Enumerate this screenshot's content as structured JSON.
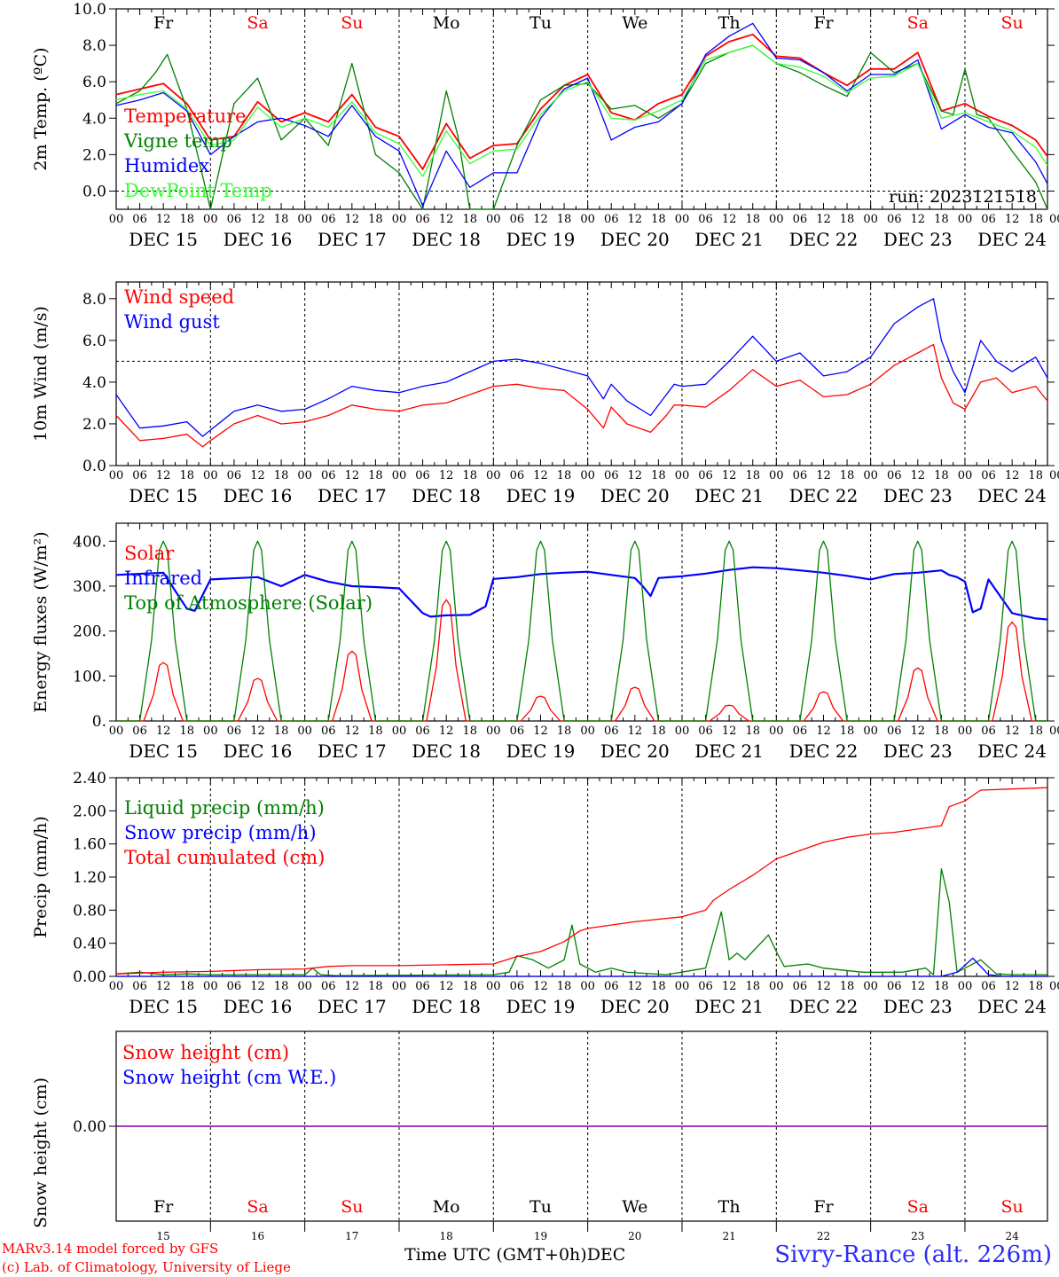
{
  "chart_data": [
    {
      "type": "line",
      "ylabel": "2m Temp. (ºC)",
      "ylim": [
        -1,
        10
      ],
      "yticks": [
        0,
        2,
        4,
        6,
        8,
        10
      ],
      "ytick_labels": [
        "0.0",
        "2.0",
        "4.0",
        "6.0",
        "8.0",
        "10.0"
      ],
      "reference_line": 0,
      "annotation": "run: 2023121518",
      "x_unit": "hours from 2023-12-15 00 UTC",
      "series": [
        {
          "name": "Temperature",
          "color": "#ff0000",
          "x": [
            0,
            6,
            12,
            18,
            24,
            30,
            36,
            42,
            48,
            54,
            60,
            66,
            72,
            78,
            84,
            90,
            96,
            102,
            108,
            114,
            120,
            126,
            132,
            138,
            144,
            150,
            156,
            162,
            168,
            174,
            180,
            186,
            192,
            198,
            204,
            210,
            216,
            222,
            228,
            234,
            237
          ],
          "y": [
            5.3,
            5.6,
            5.9,
            4.8,
            2.8,
            3.0,
            4.9,
            3.8,
            4.3,
            3.8,
            5.3,
            3.5,
            3.0,
            1.2,
            3.7,
            1.8,
            2.5,
            2.6,
            4.5,
            5.8,
            6.4,
            4.3,
            3.9,
            4.8,
            5.3,
            7.4,
            8.2,
            8.6,
            7.4,
            7.3,
            6.5,
            5.8,
            6.7,
            6.7,
            7.6,
            4.4,
            4.8,
            4.1,
            3.6,
            2.8,
            1.9
          ]
        },
        {
          "name": "Vigne temp",
          "color": "#008000",
          "x": [
            0,
            6,
            10,
            13,
            18,
            24,
            30,
            36,
            42,
            48,
            54,
            60,
            66,
            72,
            78,
            84,
            87,
            90,
            96,
            102,
            108,
            114,
            120,
            126,
            132,
            138,
            144,
            150,
            156,
            162,
            168,
            174,
            180,
            186,
            192,
            198,
            204,
            210,
            213,
            216,
            219,
            222,
            228,
            234,
            237
          ],
          "y": [
            4.8,
            5.5,
            6.5,
            7.5,
            4.5,
            -1.0,
            4.8,
            6.2,
            2.8,
            4.0,
            2.5,
            7.0,
            2.0,
            1.0,
            -1.2,
            5.5,
            3.0,
            -1.0,
            -1.0,
            2.5,
            5.0,
            5.8,
            5.9,
            4.5,
            4.7,
            4.0,
            4.8,
            7.0,
            7.6,
            8.0,
            7.0,
            6.5,
            5.8,
            5.2,
            7.6,
            6.5,
            7.0,
            4.4,
            4.2,
            6.7,
            4.2,
            4.0,
            2.2,
            0.5,
            -1.0
          ]
        },
        {
          "name": "Humidex",
          "color": "#0000ff",
          "x": [
            0,
            6,
            12,
            18,
            24,
            30,
            36,
            42,
            48,
            54,
            60,
            66,
            72,
            78,
            84,
            90,
            96,
            102,
            108,
            114,
            120,
            126,
            132,
            138,
            144,
            150,
            156,
            162,
            168,
            174,
            180,
            186,
            192,
            198,
            204,
            210,
            216,
            222,
            228,
            234,
            237
          ],
          "y": [
            4.7,
            5.0,
            5.4,
            4.4,
            2.0,
            3.0,
            3.8,
            4.0,
            3.6,
            3.0,
            4.7,
            3.0,
            2.2,
            -0.8,
            2.2,
            0.2,
            1.0,
            1.0,
            4.0,
            5.6,
            6.2,
            2.8,
            3.5,
            3.8,
            4.8,
            7.5,
            8.5,
            9.2,
            7.3,
            7.2,
            6.5,
            5.5,
            6.4,
            6.4,
            7.2,
            3.4,
            4.2,
            3.5,
            3.2,
            1.6,
            0.4
          ]
        },
        {
          "name": "DewPoint Temp",
          "color": "#33ff33",
          "x": [
            0,
            6,
            12,
            18,
            24,
            30,
            36,
            42,
            48,
            54,
            60,
            66,
            72,
            78,
            84,
            90,
            96,
            102,
            108,
            114,
            120,
            126,
            132,
            138,
            144,
            150,
            156,
            162,
            168,
            174,
            180,
            186,
            192,
            198,
            204,
            210,
            216,
            222,
            228,
            234,
            237
          ],
          "y": [
            5.0,
            5.3,
            5.5,
            4.5,
            2.5,
            2.8,
            4.6,
            3.5,
            4.0,
            3.5,
            4.9,
            3.2,
            2.6,
            0.8,
            3.3,
            1.5,
            2.2,
            2.3,
            4.2,
            5.5,
            6.0,
            4.0,
            3.9,
            4.4,
            5.0,
            7.2,
            7.6,
            8.0,
            7.0,
            6.8,
            6.3,
            5.4,
            6.2,
            6.3,
            7.0,
            4.0,
            4.3,
            3.8,
            3.3,
            2.4,
            1.4
          ]
        }
      ]
    },
    {
      "type": "line",
      "ylabel": "10m Wind (m/s)",
      "ylim": [
        0,
        8.8
      ],
      "yticks": [
        0,
        2,
        4,
        6,
        8
      ],
      "ytick_labels": [
        "0.0",
        "2.0",
        "4.0",
        "6.0",
        "8.0"
      ],
      "reference_line": 5,
      "series": [
        {
          "name": "Wind speed",
          "color": "#ff0000",
          "x": [
            0,
            6,
            12,
            18,
            22,
            24,
            30,
            36,
            42,
            48,
            54,
            60,
            66,
            72,
            78,
            84,
            90,
            96,
            102,
            108,
            114,
            120,
            124,
            126,
            130,
            136,
            140,
            142,
            144,
            150,
            156,
            162,
            168,
            174,
            180,
            186,
            192,
            198,
            204,
            208,
            210,
            213,
            216,
            220,
            224,
            228,
            234,
            237
          ],
          "y": [
            2.4,
            1.2,
            1.3,
            1.5,
            0.9,
            1.2,
            2.0,
            2.4,
            2.0,
            2.1,
            2.4,
            2.9,
            2.7,
            2.6,
            2.9,
            3.0,
            3.4,
            3.8,
            3.9,
            3.7,
            3.6,
            2.7,
            1.8,
            2.8,
            2.0,
            1.6,
            2.4,
            2.9,
            2.9,
            2.8,
            3.6,
            4.6,
            3.8,
            4.1,
            3.3,
            3.4,
            3.9,
            4.8,
            5.4,
            5.8,
            4.2,
            3.0,
            2.7,
            4.0,
            4.2,
            3.5,
            3.8,
            3.1
          ]
        },
        {
          "name": "Wind gust",
          "color": "#0000ff",
          "x": [
            0,
            6,
            12,
            18,
            22,
            24,
            30,
            36,
            42,
            48,
            54,
            60,
            66,
            72,
            78,
            84,
            90,
            96,
            102,
            108,
            114,
            120,
            124,
            126,
            130,
            136,
            140,
            142,
            144,
            150,
            156,
            162,
            168,
            174,
            180,
            186,
            192,
            198,
            204,
            208,
            210,
            213,
            216,
            220,
            224,
            228,
            234,
            237
          ],
          "y": [
            3.4,
            1.8,
            1.9,
            2.1,
            1.4,
            1.7,
            2.6,
            2.9,
            2.6,
            2.7,
            3.2,
            3.8,
            3.6,
            3.5,
            3.8,
            4.0,
            4.5,
            5.0,
            5.1,
            4.9,
            4.6,
            4.3,
            3.2,
            3.9,
            3.1,
            2.4,
            3.4,
            3.9,
            3.8,
            3.9,
            5.0,
            6.2,
            5.0,
            5.4,
            4.3,
            4.5,
            5.2,
            6.8,
            7.6,
            8.0,
            6.0,
            4.5,
            3.5,
            6.0,
            5.0,
            4.5,
            5.2,
            4.2
          ]
        }
      ]
    },
    {
      "type": "line",
      "ylabel": "Energy fluxes (W/m²)",
      "ylim": [
        0,
        440
      ],
      "yticks": [
        0,
        100,
        200,
        300,
        400
      ],
      "ytick_labels": [
        "0.",
        "100.",
        "200.",
        "300.",
        "400."
      ],
      "series": [
        {
          "name": "Solar",
          "color": "#ff0000",
          "peaks_hour": [
            12,
            36,
            60,
            84,
            108,
            132,
            156,
            180,
            204,
            228
          ],
          "peaks_value": [
            130,
            95,
            155,
            270,
            55,
            75,
            35,
            65,
            118,
            220
          ]
        },
        {
          "name": "Infrared",
          "color": "#0000ff",
          "x": [
            0,
            12,
            18,
            20,
            24,
            36,
            42,
            48,
            54,
            60,
            66,
            72,
            78,
            80,
            84,
            90,
            94,
            96,
            102,
            108,
            114,
            120,
            126,
            132,
            134,
            136,
            138,
            144,
            150,
            156,
            162,
            168,
            174,
            180,
            186,
            192,
            198,
            204,
            210,
            212,
            214,
            216,
            218,
            220,
            222,
            228,
            234,
            237
          ],
          "y": [
            325,
            330,
            250,
            245,
            315,
            320,
            300,
            325,
            310,
            300,
            298,
            295,
            240,
            232,
            235,
            236,
            255,
            316,
            320,
            327,
            330,
            332,
            325,
            318,
            300,
            278,
            318,
            322,
            328,
            336,
            342,
            340,
            335,
            330,
            323,
            315,
            327,
            330,
            335,
            325,
            320,
            310,
            242,
            250,
            315,
            240,
            228,
            226
          ]
        },
        {
          "name": "Top of Atmosphere (Solar)",
          "color": "#008000",
          "peaks_hour": [
            12,
            36,
            60,
            84,
            108,
            132,
            156,
            180,
            204,
            228
          ],
          "peaks_value": [
            400,
            400,
            400,
            400,
            400,
            400,
            400,
            400,
            400,
            400
          ]
        }
      ]
    },
    {
      "type": "line",
      "ylabel": "Precip (mm/h)",
      "ylim": [
        0,
        2.4
      ],
      "yticks": [
        0,
        0.4,
        0.8,
        1.2,
        1.6,
        2.0,
        2.4
      ],
      "ytick_labels": [
        "0.00",
        "0.40",
        "0.80",
        "1.20",
        "1.60",
        "2.00",
        "2.40"
      ],
      "series": [
        {
          "name": "Liquid precip (mm/h)",
          "color": "#008000",
          "x": [
            0,
            6,
            12,
            18,
            24,
            48,
            50,
            52,
            56,
            96,
            100,
            102,
            106,
            110,
            114,
            116,
            118,
            122,
            126,
            130,
            140,
            150,
            154,
            156,
            158,
            160,
            162,
            166,
            168,
            170,
            176,
            180,
            190,
            200,
            206,
            208,
            210,
            212,
            214,
            216,
            220,
            224,
            228,
            237
          ],
          "y": [
            0.03,
            0.05,
            0.02,
            0.03,
            0.02,
            0.02,
            0.1,
            0.02,
            0.01,
            0.02,
            0.05,
            0.25,
            0.2,
            0.1,
            0.2,
            0.62,
            0.15,
            0.05,
            0.1,
            0.05,
            0.02,
            0.1,
            0.78,
            0.2,
            0.28,
            0.2,
            0.3,
            0.5,
            0.3,
            0.12,
            0.15,
            0.1,
            0.05,
            0.05,
            0.1,
            0.02,
            1.3,
            0.9,
            0.05,
            0.1,
            0.2,
            0.03,
            0.02,
            0.02
          ]
        },
        {
          "name": "Snow precip (mm/h)",
          "color": "#0000ff",
          "x": [
            0,
            210,
            214,
            218,
            222,
            226,
            237
          ],
          "y": [
            0,
            0,
            0.05,
            0.22,
            0.02,
            0,
            0
          ]
        },
        {
          "name": "Total cumulated (cm)",
          "color": "#ff0000",
          "x": [
            0,
            12,
            24,
            36,
            48,
            54,
            60,
            72,
            84,
            96,
            102,
            108,
            114,
            118,
            120,
            132,
            144,
            150,
            152,
            156,
            162,
            168,
            174,
            180,
            186,
            192,
            198,
            204,
            210,
            212,
            216,
            220,
            237
          ],
          "y": [
            0.03,
            0.05,
            0.06,
            0.08,
            0.09,
            0.12,
            0.13,
            0.13,
            0.14,
            0.15,
            0.24,
            0.3,
            0.42,
            0.55,
            0.58,
            0.66,
            0.72,
            0.8,
            0.92,
            1.05,
            1.22,
            1.42,
            1.52,
            1.62,
            1.68,
            1.72,
            1.74,
            1.78,
            1.82,
            2.05,
            2.12,
            2.25,
            2.28
          ]
        }
      ]
    },
    {
      "type": "line",
      "ylabel": "Snow height (cm)",
      "yticks": [
        0
      ],
      "ytick_labels": [
        "0.00"
      ],
      "series": [
        {
          "name": "Snow height (cm)",
          "color": "#ff0000",
          "x": [
            0,
            237
          ],
          "y": [
            0,
            0
          ]
        },
        {
          "name": "Snow height (cm W.E.)",
          "color": "#0000ff",
          "x": [
            0,
            237
          ],
          "y": [
            0,
            0
          ]
        }
      ]
    }
  ],
  "axis": {
    "hour_ticks": [
      "00",
      "06",
      "12",
      "18"
    ],
    "end_tick": "00",
    "days": [
      "DEC 15",
      "DEC 16",
      "DEC 17",
      "DEC 18",
      "DEC 19",
      "DEC 20",
      "DEC 21",
      "DEC 22",
      "DEC 23",
      "DEC 24"
    ],
    "weekdays": [
      "Fr",
      "Sa",
      "Su",
      "Mo",
      "Tu",
      "We",
      "Th",
      "Fr",
      "Sa",
      "Su"
    ],
    "weekend": [
      false,
      true,
      true,
      false,
      false,
      false,
      false,
      false,
      true,
      true
    ],
    "day_numbers": [
      "15",
      "16",
      "17",
      "18",
      "19",
      "20",
      "21",
      "22",
      "23",
      "24"
    ]
  },
  "footer": {
    "model": "MARv3.14 model forced by GFS",
    "credit": "(c) Lab. of Climatology, University of Liege",
    "xlabel": "Time UTC (GMT+0h)",
    "month": "DEC",
    "station": "Sivry-Rance (alt. 226m)"
  },
  "colors": {
    "weekday": "#000000",
    "weekend": "#ff0000",
    "station": "#2b2bff",
    "snow_line": "#8000a0"
  }
}
